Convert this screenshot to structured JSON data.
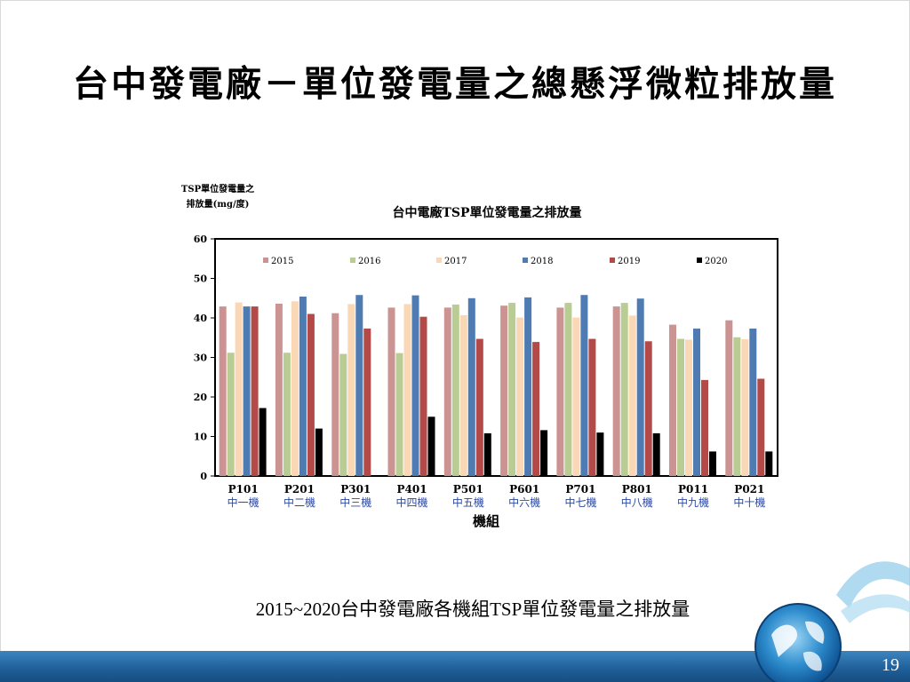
{
  "slide": {
    "title": "台中發電廠－單位發電量之總懸浮微粒排放量",
    "caption": "2015~2020台中發電廠各機組TSP單位發電量之排放量",
    "page_number": "19"
  },
  "colors": {
    "2015": "#cc9393",
    "2016": "#b9cc94",
    "2017": "#fad7b5",
    "2018": "#4f7bb3",
    "2019": "#b44a47",
    "2020": "#000000",
    "unit_label": "#2e4a9e",
    "bottom_bar": "#1e5e98"
  },
  "chart_data": {
    "type": "bar",
    "title": "台中電廠TSP單位發電量之排放量",
    "ylabel": "TSP單位發電量之排放量(mg/度)",
    "xlabel": "機組",
    "ylim": [
      0,
      60
    ],
    "yticks": [
      "0",
      "10",
      "20",
      "30",
      "40",
      "50",
      "60"
    ],
    "grid": false,
    "legend_position": "top",
    "categories": [
      "P101",
      "P201",
      "P301",
      "P401",
      "P501",
      "P601",
      "P701",
      "P801",
      "P011",
      "P021"
    ],
    "category_sublabels": [
      "中一機",
      "中二機",
      "中三機",
      "中四機",
      "中五機",
      "中六機",
      "中七機",
      "中八機",
      "中九機",
      "中十機"
    ],
    "series": [
      {
        "name": "2015",
        "values": [
          42.9,
          43.6,
          41.2,
          42.6,
          42.6,
          43.1,
          42.6,
          42.9,
          38.3,
          39.4
        ]
      },
      {
        "name": "2016",
        "values": [
          31.2,
          31.2,
          30.9,
          31.1,
          43.4,
          43.8,
          43.8,
          43.8,
          34.7,
          35.1
        ]
      },
      {
        "name": "2017",
        "values": [
          43.9,
          44.2,
          43.5,
          43.5,
          40.7,
          40.1,
          40.1,
          40.6,
          34.5,
          34.6
        ]
      },
      {
        "name": "2018",
        "values": [
          42.9,
          45.4,
          45.8,
          45.7,
          45.0,
          45.2,
          45.8,
          44.9,
          37.3,
          37.3
        ]
      },
      {
        "name": "2019",
        "values": [
          42.9,
          41.0,
          37.3,
          40.3,
          34.7,
          33.9,
          34.7,
          34.1,
          24.3,
          24.6
        ]
      },
      {
        "name": "2020",
        "values": [
          17.2,
          12.0,
          0,
          15.0,
          10.8,
          11.6,
          11.0,
          10.8,
          6.2,
          6.2
        ]
      }
    ]
  }
}
